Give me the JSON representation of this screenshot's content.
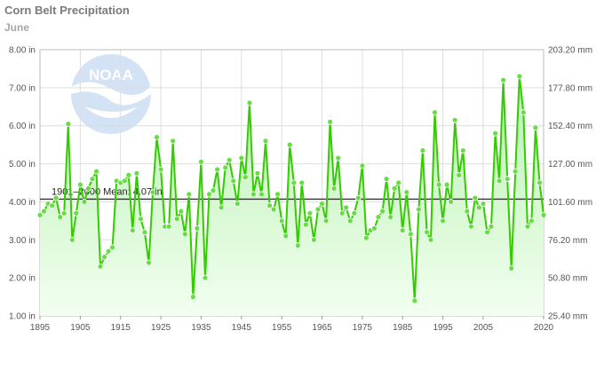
{
  "header": {
    "title": "Corn Belt Precipitation",
    "subtitle": "June"
  },
  "logo": {
    "text": "NOAA"
  },
  "chart_data": {
    "type": "line",
    "title": "Corn Belt Precipitation",
    "subtitle": "June",
    "x_range": [
      1895,
      2020
    ],
    "x_ticks": [
      "1895",
      "1905",
      "1915",
      "1925",
      "1935",
      "1945",
      "1955",
      "1965",
      "1975",
      "1985",
      "1995",
      "2005",
      "2020"
    ],
    "ylim_left": [
      1.0,
      8.0
    ],
    "y_ticks_left": [
      "1.00 in",
      "2.00 in",
      "3.00 in",
      "4.00 in",
      "5.00 in",
      "6.00 in",
      "7.00 in",
      "8.00 in"
    ],
    "ylim_right": [
      25.4,
      203.2
    ],
    "y_ticks_right": [
      "25.40 mm",
      "50.80 mm",
      "76.20 mm",
      "101.60 mm",
      "127.00 mm",
      "152.40 mm",
      "177.80 mm",
      "203.20 mm"
    ],
    "mean": {
      "label": "1901–2000 Mean: 4.07 in",
      "value": 4.07
    },
    "grid": true,
    "colors": {
      "line": "#33cc00",
      "marker": "#66dd44",
      "area_top": "#b8f0b0",
      "area_bottom": "#f2fff0",
      "mean_line": "#333333",
      "grid": "#dddddd"
    },
    "series": [
      {
        "x": [
          1895,
          1896,
          1897,
          1898,
          1899,
          1900,
          1901,
          1902,
          1903,
          1904,
          1905,
          1906,
          1907,
          1908,
          1909,
          1910,
          1911,
          1912,
          1913,
          1914,
          1915,
          1916,
          1917,
          1918,
          1919,
          1920,
          1921,
          1922,
          1923,
          1924,
          1925,
          1926,
          1927,
          1928,
          1929,
          1930,
          1931,
          1932,
          1933,
          1934,
          1935,
          1936,
          1937,
          1938,
          1939,
          1940,
          1941,
          1942,
          1943,
          1944,
          1945,
          1946,
          1947,
          1948,
          1949,
          1950,
          1951,
          1952,
          1953,
          1954,
          1955,
          1956,
          1957,
          1958,
          1959,
          1960,
          1961,
          1962,
          1963,
          1964,
          1965,
          1966,
          1967,
          1968,
          1969,
          1970,
          1971,
          1972,
          1973,
          1974,
          1975,
          1976,
          1977,
          1978,
          1979,
          1980,
          1981,
          1982,
          1983,
          1984,
          1985,
          1986,
          1987,
          1988,
          1989,
          1990,
          1991,
          1992,
          1993,
          1994,
          1995,
          1996,
          1997,
          1998,
          1999,
          2000,
          2001,
          2002,
          2003,
          2004,
          2005,
          2006,
          2007,
          2008,
          2009,
          2010,
          2011,
          2012,
          2013,
          2014,
          2015,
          2016,
          2017,
          2018,
          2019,
          2020
        ],
        "y": [
          3.65,
          3.75,
          3.95,
          3.9,
          4.1,
          3.6,
          3.7,
          6.05,
          3.0,
          3.7,
          4.45,
          4.0,
          4.35,
          4.6,
          4.8,
          2.3,
          2.55,
          2.7,
          2.8,
          4.55,
          4.5,
          4.55,
          4.7,
          3.25,
          4.75,
          3.55,
          3.2,
          2.4,
          4.25,
          5.7,
          4.85,
          3.35,
          3.35,
          5.6,
          3.55,
          3.75,
          3.15,
          4.2,
          1.5,
          3.3,
          5.05,
          2.0,
          4.2,
          4.3,
          4.85,
          3.85,
          4.9,
          5.1,
          4.55,
          3.95,
          5.15,
          4.65,
          6.6,
          4.2,
          4.75,
          4.2,
          5.6,
          3.9,
          3.8,
          4.2,
          3.5,
          3.1,
          5.5,
          4.5,
          2.85,
          4.5,
          3.4,
          3.7,
          3.0,
          3.8,
          3.95,
          3.5,
          6.1,
          4.35,
          5.15,
          3.7,
          3.85,
          3.5,
          3.7,
          4.1,
          4.95,
          3.05,
          3.25,
          3.3,
          3.6,
          3.75,
          4.6,
          3.6,
          4.35,
          4.5,
          3.25,
          4.25,
          3.15,
          1.4,
          3.8,
          5.35,
          3.2,
          3.0,
          6.35,
          4.45,
          3.5,
          4.45,
          4.0,
          6.15,
          4.7,
          5.35,
          3.75,
          3.35,
          4.1,
          3.85,
          3.95,
          3.2,
          3.35,
          5.8,
          4.55,
          7.2,
          4.6,
          2.25,
          4.8,
          7.3,
          6.35,
          3.35,
          3.5,
          5.95,
          4.5,
          3.65
        ]
      }
    ]
  }
}
